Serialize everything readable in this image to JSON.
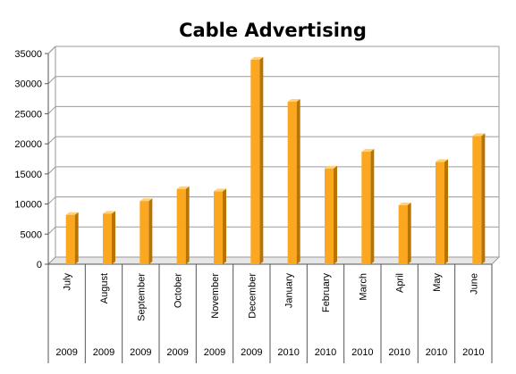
{
  "chart_data": {
    "type": "bar",
    "title": "Cable Advertising",
    "categories": [
      "July",
      "August",
      "September",
      "October",
      "November",
      "December",
      "January",
      "February",
      "March",
      "April",
      "May",
      "June"
    ],
    "years": [
      "2009",
      "2009",
      "2009",
      "2009",
      "2009",
      "2009",
      "2010",
      "2010",
      "2010",
      "2010",
      "2010",
      "2010"
    ],
    "values": [
      8200,
      8400,
      10500,
      12500,
      12100,
      34000,
      27000,
      15900,
      18700,
      9800,
      17000,
      21300
    ],
    "ylim": [
      0,
      35000
    ],
    "yticks": [
      "0",
      "5000",
      "10000",
      "15000",
      "20000",
      "25000",
      "30000",
      "35000"
    ],
    "grid": true,
    "legend": "none",
    "colors": {
      "bar_front": "#FBA71F",
      "bar_side": "#B87400",
      "bar_top": "#FFD27A",
      "grid": "#9a9a9a",
      "wall": "#ffffff"
    }
  }
}
